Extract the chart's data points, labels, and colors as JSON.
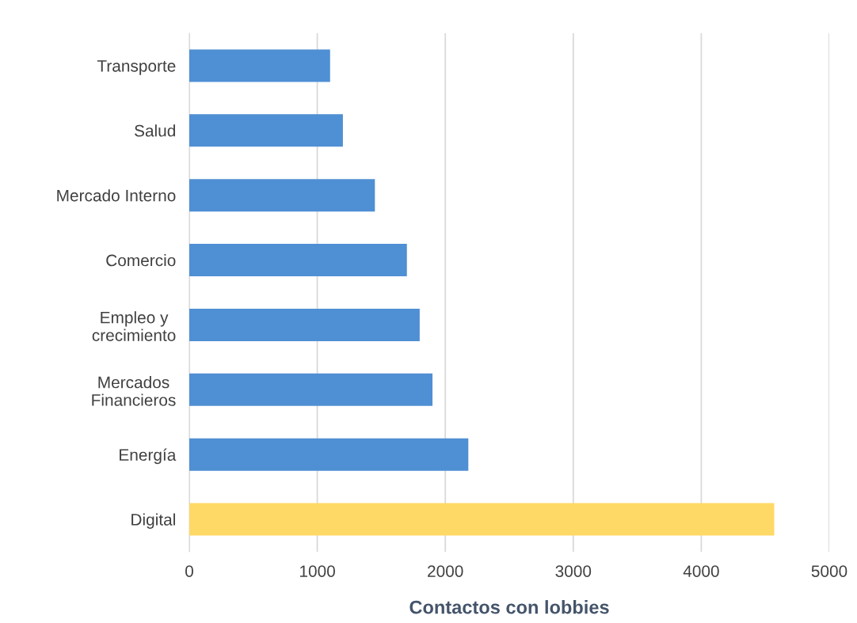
{
  "chart_data": {
    "type": "bar",
    "orientation": "horizontal",
    "xlabel": "Contactos con lobbies",
    "categories": [
      "Transporte",
      "Salud",
      "Mercado Interno",
      "Comercio",
      "Empleo y\ncrecimiento",
      "Mercados\nFinancieros",
      "Energía",
      "Digital"
    ],
    "values": [
      1100,
      1200,
      1450,
      1700,
      1800,
      1900,
      2180,
      4570
    ],
    "colors": [
      "#4f8fd4",
      "#4f8fd4",
      "#4f8fd4",
      "#4f8fd4",
      "#4f8fd4",
      "#4f8fd4",
      "#4f8fd4",
      "#ffd966"
    ],
    "xlim": [
      0,
      5000
    ],
    "xticks": [
      0,
      1000,
      2000,
      3000,
      4000,
      5000
    ],
    "grid": "x",
    "legend": false
  }
}
